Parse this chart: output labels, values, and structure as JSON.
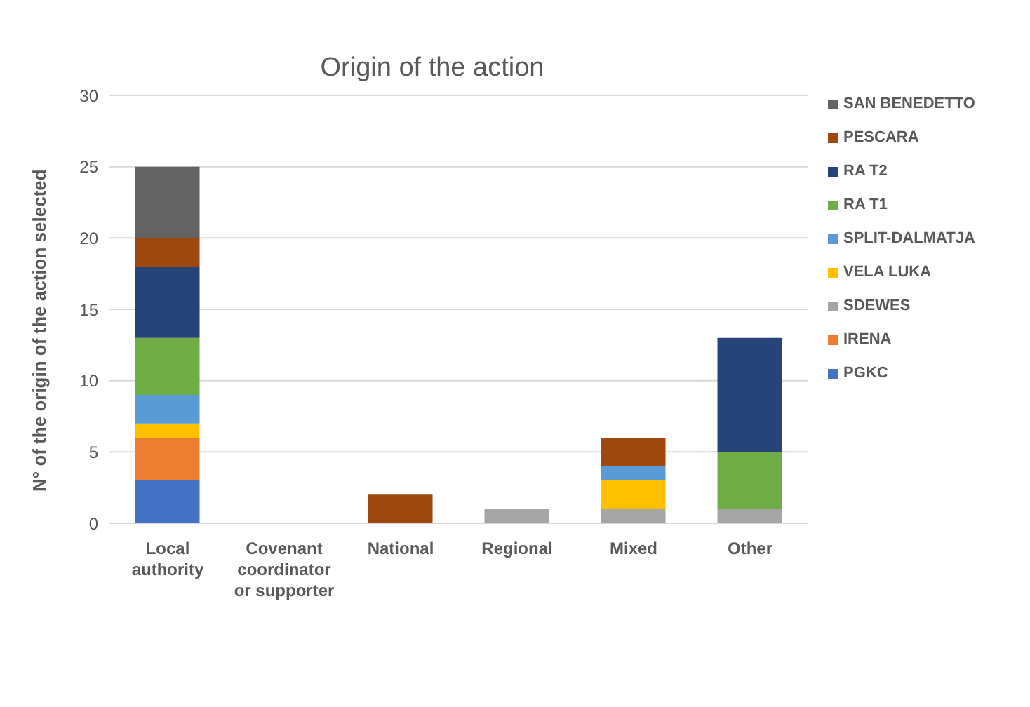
{
  "chart_data": {
    "type": "bar",
    "title": "Origin of the action",
    "ylabel": "N° of the origin of the action selected",
    "categories": [
      "Local authority",
      "Covenant coordinator or supporter",
      "National",
      "Regional",
      "Mixed",
      "Other"
    ],
    "stacked": true,
    "series": [
      {
        "name": "PGKC",
        "color": "#4472c4",
        "values": [
          3,
          0,
          0,
          0,
          0,
          0
        ]
      },
      {
        "name": "IRENA",
        "color": "#ed7d31",
        "values": [
          3,
          0,
          0,
          0,
          0,
          0
        ]
      },
      {
        "name": "SDEWES",
        "color": "#a5a5a5",
        "values": [
          0,
          0,
          0,
          1,
          1,
          1
        ]
      },
      {
        "name": "VELA LUKA",
        "color": "#ffc000",
        "values": [
          1,
          0,
          0,
          0,
          2,
          0
        ]
      },
      {
        "name": "SPLIT-DALMATJA",
        "color": "#5b9bd5",
        "values": [
          2,
          0,
          0,
          0,
          1,
          0
        ]
      },
      {
        "name": "RA T1",
        "color": "#70ad47",
        "values": [
          4,
          0,
          0,
          0,
          0,
          4
        ]
      },
      {
        "name": "RA T2",
        "color": "#264478",
        "values": [
          5,
          0,
          0,
          0,
          0,
          8
        ]
      },
      {
        "name": "PESCARA",
        "color": "#9e480e",
        "values": [
          2,
          0,
          2,
          0,
          2,
          0
        ]
      },
      {
        "name": "SAN BENEDETTO",
        "color": "#636363",
        "values": [
          5,
          0,
          0,
          0,
          0,
          0
        ]
      }
    ],
    "ylim": [
      0,
      30
    ],
    "yticks": [
      0,
      5,
      10,
      15,
      20,
      25,
      30
    ],
    "grid": "y",
    "legend": "right"
  }
}
